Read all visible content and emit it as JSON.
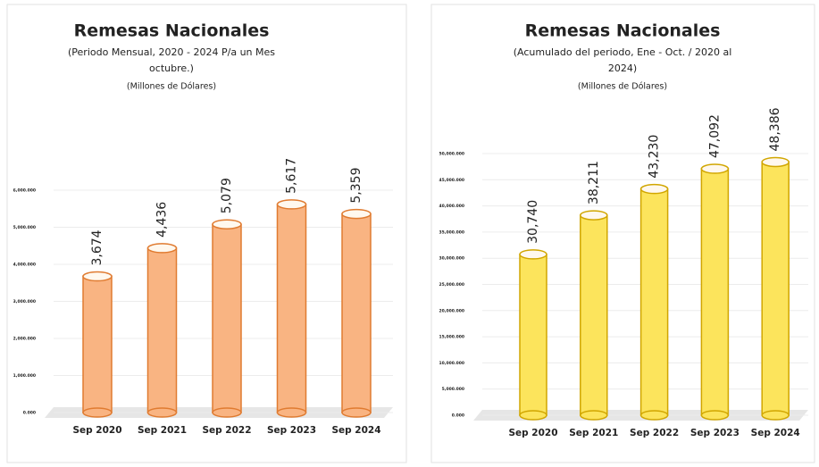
{
  "chart_data": [
    {
      "type": "cylinder-bar",
      "title": "Remesas Nacionales",
      "subtitle": [
        "(Periodo Mensual, 2020 - 2024 P/a un Mes",
        "octubre.)"
      ],
      "unit": "(Millones de Dólares)",
      "categories": [
        "Sep 2020",
        "Sep 2021",
        "Sep 2022",
        "Sep 2023",
        "Sep 2024"
      ],
      "values": [
        3674,
        4436,
        5079,
        5617,
        5359
      ],
      "value_labels": [
        "3,674",
        "4,436",
        "5,079",
        "5,617",
        "5,359"
      ],
      "color": "#f9b482",
      "edge_color": "#e07b30",
      "ylim": [
        0,
        6000
      ],
      "yticks": [
        {
          "value": 0,
          "label": "0.000"
        },
        {
          "value": 1000,
          "label": "1,000.000"
        },
        {
          "value": 2000,
          "label": "2,000.000"
        },
        {
          "value": 3000,
          "label": "3,000.000"
        },
        {
          "value": 4000,
          "label": "4,000.000"
        },
        {
          "value": 5000,
          "label": "5,000.000"
        },
        {
          "value": 6000,
          "label": "6,000.000"
        }
      ],
      "grid": true
    },
    {
      "type": "cylinder-bar",
      "title": "Remesas Nacionales",
      "subtitle": [
        "(Acumulado del periodo, Ene - Oct. / 2020 al",
        "2024)"
      ],
      "unit": "(Millones de Dólares)",
      "categories": [
        "Sep 2020",
        "Sep 2021",
        "Sep 2022",
        "Sep 2023",
        "Sep 2024"
      ],
      "values": [
        30740,
        38211,
        43230,
        47092,
        48386
      ],
      "value_labels": [
        "30,740",
        "38,211",
        "43,230",
        "47,092",
        "48,386"
      ],
      "color": "#fce45c",
      "edge_color": "#d1a600",
      "ylim": [
        0,
        50000
      ],
      "yticks": [
        {
          "value": 0,
          "label": "0.000"
        },
        {
          "value": 5000,
          "label": "5,000.000"
        },
        {
          "value": 10000,
          "label": "10,000.000"
        },
        {
          "value": 15000,
          "label": "15,000.000"
        },
        {
          "value": 20000,
          "label": "20,000.000"
        },
        {
          "value": 25000,
          "label": "25,000.000"
        },
        {
          "value": 30000,
          "label": "30,000.000"
        },
        {
          "value": 35000,
          "label": "35,000.000"
        },
        {
          "value": 40000,
          "label": "40,000.000"
        },
        {
          "value": 45000,
          "label": "45,000.000"
        },
        {
          "value": 50000,
          "label": "50,000.000"
        }
      ],
      "grid": true
    }
  ]
}
